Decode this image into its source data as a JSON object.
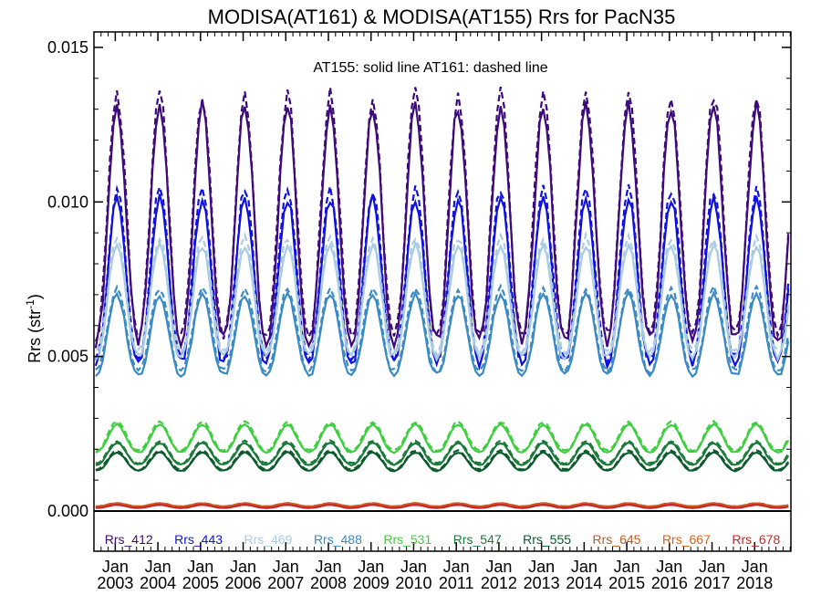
{
  "chart_data": {
    "type": "line",
    "title": "MODISA(AT161) & MODISA(AT155)  Rrs for PacN35",
    "annotation": "AT155: solid line   AT161: dashed line",
    "ylabel": "Rrs (str",
    "ylabel_sup": "-1",
    "ylabel_end": ")",
    "ylim": [
      -0.0013,
      0.0155
    ],
    "xlim": [
      2002.5,
      2018.85
    ],
    "yticks": [
      0.0,
      0.005,
      0.01,
      0.015
    ],
    "ytick_labels": [
      "0.000",
      "0.005",
      "0.010",
      "0.015"
    ],
    "xticks": [
      2003,
      2004,
      2005,
      2006,
      2007,
      2008,
      2009,
      2010,
      2011,
      2012,
      2013,
      2014,
      2015,
      2016,
      2017,
      2018
    ],
    "xtick_month": "Jan",
    "xtick_years": [
      "2003",
      "2004",
      "2005",
      "2006",
      "2007",
      "2008",
      "2009",
      "2010",
      "2011",
      "2012",
      "2013",
      "2014",
      "2015",
      "2016",
      "2017",
      "2018"
    ],
    "zero_line": 0.0,
    "line_styles": {
      "AT155": "solid",
      "AT161": "dashed"
    },
    "seasonal_model": {
      "annual_peak_fraction": 0.96,
      "annual_trough_fraction": 0.5,
      "dashed_offset_ratio": 1.03
    },
    "series": [
      {
        "name": "Rrs_412",
        "color": "#3d0a7a",
        "min": 0.0055,
        "max": 0.0131
      },
      {
        "name": "Rrs_443",
        "color": "#1010e0",
        "min": 0.0048,
        "max": 0.0101
      },
      {
        "name": "Rrs_469",
        "color": "#a9cce3",
        "min": 0.005,
        "max": 0.0086
      },
      {
        "name": "Rrs_488",
        "color": "#3a8ac4",
        "min": 0.0044,
        "max": 0.007
      },
      {
        "name": "Rrs_531",
        "color": "#3ecf3e",
        "min": 0.0019,
        "max": 0.0028
      },
      {
        "name": "Rrs_547",
        "color": "#1a7a3a",
        "min": 0.0015,
        "max": 0.0022
      },
      {
        "name": "Rrs_555",
        "color": "#0d5a2c",
        "min": 0.0013,
        "max": 0.0019
      },
      {
        "name": "Rrs_645",
        "color": "#c45a28",
        "min": 0.00015,
        "max": 0.00025
      },
      {
        "name": "Rrs_667",
        "color": "#e0601a",
        "min": 0.00012,
        "max": 0.00022
      },
      {
        "name": "Rrs_678",
        "color": "#c4282a",
        "min": 0.0001,
        "max": 0.0002
      }
    ]
  }
}
